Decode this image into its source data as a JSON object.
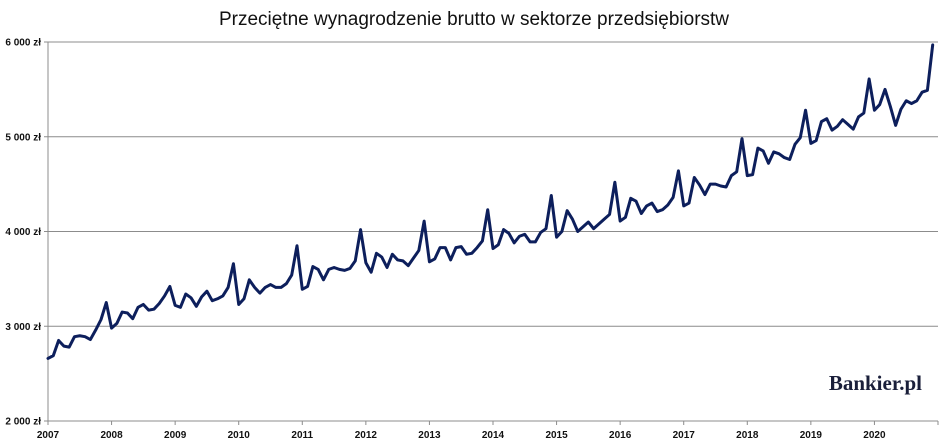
{
  "chart_data": {
    "type": "line",
    "title": "Przeciętne wynagrodzenie brutto w sektorze przedsiębiorstw",
    "xlabel": "",
    "ylabel": "",
    "x_ticks": [
      "2007",
      "2008",
      "2009",
      "2010",
      "2011",
      "2012",
      "2013",
      "2014",
      "2015",
      "2016",
      "2017",
      "2018",
      "2019",
      "2020"
    ],
    "y_ticks": [
      "2 000 zł",
      "3 000 zł",
      "4 000 zł",
      "5 000 zł",
      "6 000 zł"
    ],
    "ylim": [
      2000,
      6000
    ],
    "xlim": [
      2007,
      2021
    ],
    "grid": true,
    "line_color": "#0d1f5c",
    "series": [
      {
        "name": "",
        "start": "2007-01",
        "frequency": "monthly",
        "values": [
          2660,
          2690,
          2850,
          2790,
          2780,
          2890,
          2900,
          2890,
          2860,
          2960,
          3070,
          3250,
          2980,
          3030,
          3150,
          3140,
          3080,
          3200,
          3230,
          3170,
          3180,
          3240,
          3320,
          3420,
          3220,
          3200,
          3340,
          3300,
          3210,
          3310,
          3370,
          3270,
          3290,
          3320,
          3410,
          3660,
          3230,
          3290,
          3490,
          3410,
          3350,
          3410,
          3440,
          3410,
          3410,
          3450,
          3540,
          3850,
          3390,
          3420,
          3630,
          3600,
          3490,
          3600,
          3620,
          3600,
          3590,
          3610,
          3690,
          4020,
          3670,
          3570,
          3770,
          3730,
          3620,
          3760,
          3700,
          3690,
          3640,
          3720,
          3800,
          4110,
          3680,
          3710,
          3830,
          3830,
          3700,
          3830,
          3840,
          3760,
          3770,
          3830,
          3900,
          4230,
          3820,
          3860,
          4020,
          3980,
          3880,
          3950,
          3970,
          3890,
          3890,
          3990,
          4030,
          4380,
          3940,
          4000,
          4220,
          4130,
          4000,
          4050,
          4100,
          4030,
          4080,
          4130,
          4180,
          4520,
          4110,
          4150,
          4350,
          4320,
          4190,
          4270,
          4300,
          4210,
          4230,
          4280,
          4360,
          4640,
          4270,
          4300,
          4570,
          4490,
          4390,
          4500,
          4500,
          4480,
          4470,
          4590,
          4630,
          4980,
          4590,
          4600,
          4880,
          4850,
          4720,
          4840,
          4820,
          4780,
          4760,
          4920,
          4990,
          5280,
          4930,
          4960,
          5160,
          5190,
          5070,
          5110,
          5180,
          5130,
          5080,
          5210,
          5250,
          5610,
          5280,
          5340,
          5500,
          5320,
          5120,
          5290,
          5380,
          5350,
          5380,
          5470,
          5490,
          5970
        ]
      }
    ],
    "watermark": "Bankier.pl"
  }
}
